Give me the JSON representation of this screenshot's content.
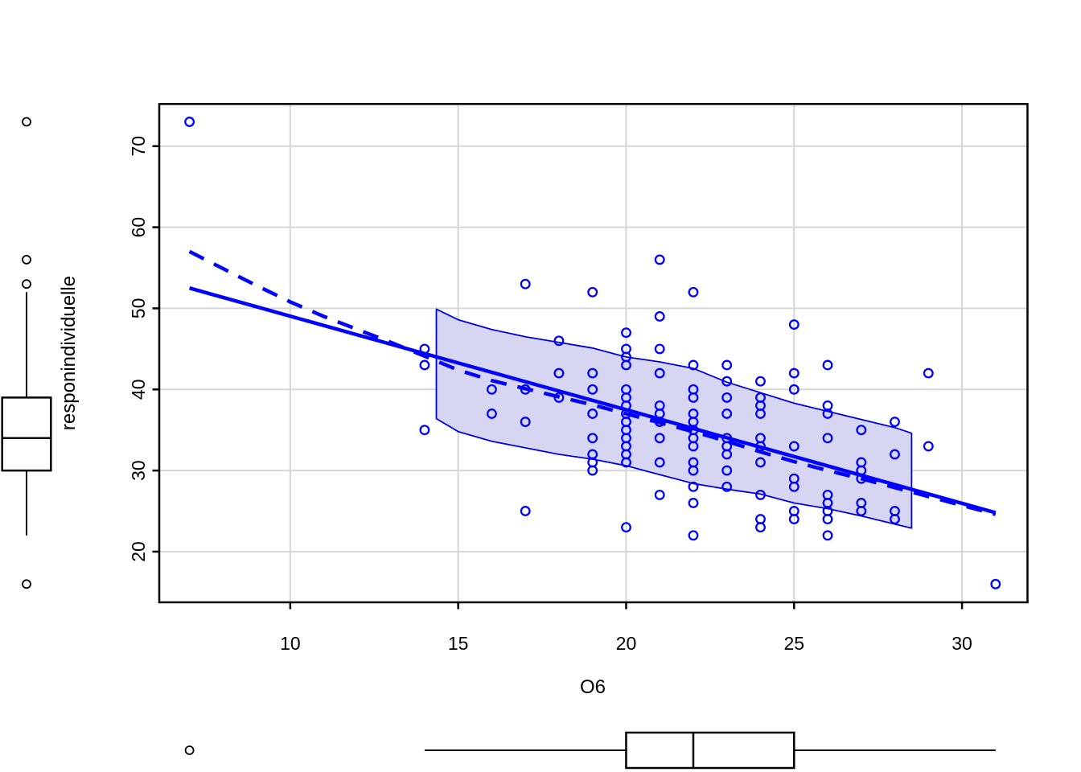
{
  "chart_data": {
    "type": "scatter",
    "title": "",
    "xlabel": "O6",
    "ylabel": "responindividuelle",
    "xlim": [
      6.1,
      31.95
    ],
    "ylim": [
      13.75,
      75.2
    ],
    "x_ticks": [
      10,
      15,
      20,
      25,
      30
    ],
    "y_ticks": [
      20,
      30,
      40,
      50,
      60,
      70
    ],
    "grid": true,
    "legend": "none",
    "points": [
      [
        7,
        73
      ],
      [
        14,
        45
      ],
      [
        14,
        43
      ],
      [
        14,
        35
      ],
      [
        16,
        40
      ],
      [
        16,
        37
      ],
      [
        17,
        53
      ],
      [
        17,
        40
      ],
      [
        17,
        36
      ],
      [
        17,
        25
      ],
      [
        18,
        46
      ],
      [
        18,
        42
      ],
      [
        18,
        39
      ],
      [
        19,
        52
      ],
      [
        19,
        42
      ],
      [
        19,
        40
      ],
      [
        19,
        37
      ],
      [
        19,
        34
      ],
      [
        19,
        32
      ],
      [
        19,
        31
      ],
      [
        19,
        30
      ],
      [
        20,
        47
      ],
      [
        20,
        45
      ],
      [
        20,
        44
      ],
      [
        20,
        43
      ],
      [
        20,
        40
      ],
      [
        20,
        39
      ],
      [
        20,
        38
      ],
      [
        20,
        37
      ],
      [
        20,
        36
      ],
      [
        20,
        35
      ],
      [
        20,
        34
      ],
      [
        20,
        33
      ],
      [
        20,
        32
      ],
      [
        20,
        31
      ],
      [
        20,
        23
      ],
      [
        21,
        56
      ],
      [
        21,
        49
      ],
      [
        21,
        45
      ],
      [
        21,
        42
      ],
      [
        21,
        38
      ],
      [
        21,
        37
      ],
      [
        21,
        36
      ],
      [
        21,
        34
      ],
      [
        21,
        31
      ],
      [
        21,
        27
      ],
      [
        22,
        52
      ],
      [
        22,
        43
      ],
      [
        22,
        40
      ],
      [
        22,
        39
      ],
      [
        22,
        37
      ],
      [
        22,
        36
      ],
      [
        22,
        35
      ],
      [
        22,
        34
      ],
      [
        22,
        33
      ],
      [
        22,
        31
      ],
      [
        22,
        30
      ],
      [
        22,
        28
      ],
      [
        22,
        26
      ],
      [
        22,
        22
      ],
      [
        23,
        43
      ],
      [
        23,
        41
      ],
      [
        23,
        39
      ],
      [
        23,
        37
      ],
      [
        23,
        34
      ],
      [
        23,
        33
      ],
      [
        23,
        32
      ],
      [
        23,
        30
      ],
      [
        23,
        28
      ],
      [
        24,
        41
      ],
      [
        24,
        39
      ],
      [
        24,
        38
      ],
      [
        24,
        37
      ],
      [
        24,
        34
      ],
      [
        24,
        33
      ],
      [
        24,
        31
      ],
      [
        24,
        27
      ],
      [
        24,
        24
      ],
      [
        24,
        23
      ],
      [
        25,
        48
      ],
      [
        25,
        42
      ],
      [
        25,
        40
      ],
      [
        25,
        33
      ],
      [
        25,
        29
      ],
      [
        25,
        28
      ],
      [
        25,
        25
      ],
      [
        25,
        24
      ],
      [
        26,
        43
      ],
      [
        26,
        38
      ],
      [
        26,
        37
      ],
      [
        26,
        34
      ],
      [
        26,
        27
      ],
      [
        26,
        26
      ],
      [
        26,
        25
      ],
      [
        26,
        24
      ],
      [
        26,
        22
      ],
      [
        27,
        35
      ],
      [
        27,
        31
      ],
      [
        27,
        30
      ],
      [
        27,
        29
      ],
      [
        27,
        26
      ],
      [
        27,
        25
      ],
      [
        28,
        36
      ],
      [
        28,
        32
      ],
      [
        28,
        25
      ],
      [
        28,
        24
      ],
      [
        29,
        42
      ],
      [
        29,
        33
      ],
      [
        31,
        16
      ]
    ],
    "fit_line": {
      "name": "linear-fit",
      "style": "solid",
      "x": [
        7,
        31
      ],
      "y": [
        52.5,
        24.8
      ]
    },
    "smooth_line": {
      "name": "loess-smooth",
      "style": "dashed",
      "points": [
        [
          7,
          57.0
        ],
        [
          8,
          54.9
        ],
        [
          9,
          52.8
        ],
        [
          10,
          50.8
        ],
        [
          11,
          49.0
        ],
        [
          12,
          47.4
        ],
        [
          13,
          45.8
        ],
        [
          14,
          44.1
        ],
        [
          15,
          42.4
        ],
        [
          16,
          41.1
        ],
        [
          17,
          40.1
        ],
        [
          18,
          39.1
        ],
        [
          19,
          38.1
        ],
        [
          20,
          37.0
        ],
        [
          21,
          35.9
        ],
        [
          22,
          34.8
        ],
        [
          23,
          33.6
        ],
        [
          24,
          32.3
        ],
        [
          25,
          31.1
        ],
        [
          26,
          30.0
        ],
        [
          27,
          29.0
        ],
        [
          28,
          27.9
        ],
        [
          29,
          26.8
        ],
        [
          30,
          25.7
        ],
        [
          31,
          24.6
        ]
      ]
    },
    "confidence_band": {
      "upper": [
        [
          14.35,
          49.9
        ],
        [
          15,
          48.6
        ],
        [
          16,
          47.4
        ],
        [
          17,
          46.5
        ],
        [
          18,
          45.8
        ],
        [
          19,
          45.1
        ],
        [
          20,
          44.0
        ],
        [
          21,
          43.4
        ],
        [
          22,
          42.6
        ],
        [
          23,
          40.9
        ],
        [
          24,
          39.6
        ],
        [
          25,
          38.3
        ],
        [
          26,
          37.3
        ],
        [
          27,
          36.3
        ],
        [
          28,
          35.3
        ],
        [
          28.5,
          34.6
        ]
      ],
      "lower": [
        [
          14.35,
          36.4
        ],
        [
          15,
          34.8
        ],
        [
          16,
          33.6
        ],
        [
          17,
          32.8
        ],
        [
          18,
          32.0
        ],
        [
          19,
          31.4
        ],
        [
          20,
          30.6
        ],
        [
          21,
          29.5
        ],
        [
          22,
          28.4
        ],
        [
          23,
          27.7
        ],
        [
          24,
          27.1
        ],
        [
          25,
          26.0
        ],
        [
          26,
          25.3
        ],
        [
          27,
          24.4
        ],
        [
          28,
          23.4
        ],
        [
          28.5,
          22.9
        ]
      ]
    },
    "marginal_boxplot_y": {
      "orientation": "vertical",
      "q1": 30,
      "median": 34,
      "q3": 39,
      "whisker_low": 22,
      "whisker_high": 52,
      "outliers": [
        73,
        56,
        53,
        16
      ]
    },
    "marginal_boxplot_x": {
      "orientation": "horizontal",
      "q1": 20,
      "median": 22,
      "q3": 25,
      "whisker_low": 14,
      "whisker_high": 31,
      "outliers": [
        7
      ]
    },
    "colors": {
      "point": "#0000ff",
      "fit_line": "#0000ff",
      "smooth_line": "#0000ff",
      "band_fill": "#d6d6f3",
      "band_stroke": "#0000e0",
      "grid": "#d6d6d6",
      "axis": "#000000",
      "boxplot": "#000000",
      "background": "#ffffff"
    }
  }
}
